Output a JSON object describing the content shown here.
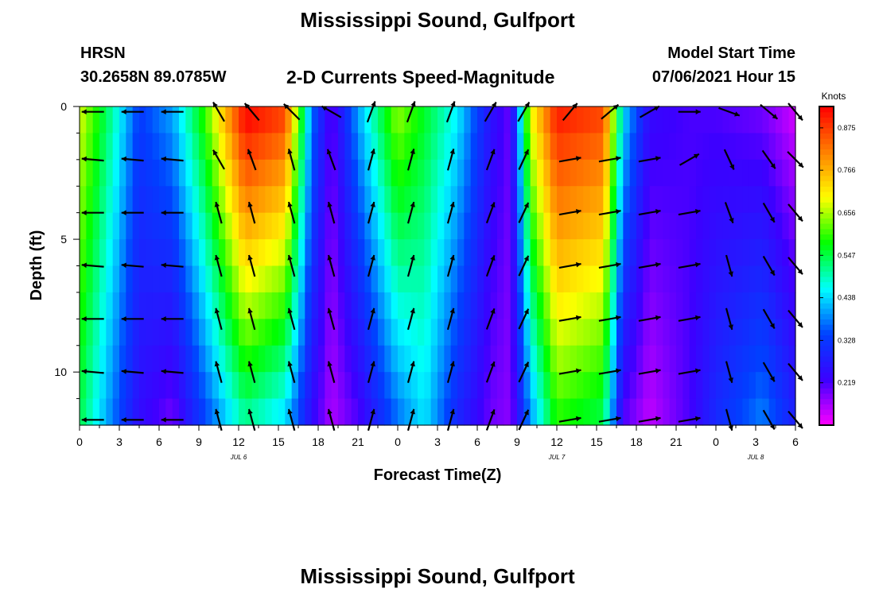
{
  "header": {
    "title": "Mississippi Sound, Gulfport",
    "station": "HRSN",
    "coordinates": "30.2658N  89.0785W",
    "plot_title": "2-D Currents Speed-Magnitude",
    "model_start_label": "Model Start Time",
    "model_start_value": "07/06/2021 Hour 15"
  },
  "footer": {
    "title": "Mississippi Sound, Gulfport"
  },
  "chart_data": {
    "type": "heatmap",
    "title": "2-D Currents Speed-Magnitude",
    "xlabel": "Forecast Time(Z)",
    "ylabel": "Depth (ft)",
    "x_range": [
      0,
      54
    ],
    "y_range": [
      0,
      12
    ],
    "y_inverted": true,
    "x_tick_labels": [
      "0",
      "3",
      "6",
      "9",
      "12",
      "15",
      "18",
      "21",
      "0",
      "3",
      "6",
      "9",
      "12",
      "15",
      "18",
      "21",
      "0",
      "3",
      "6"
    ],
    "y_tick_labels": [
      "0",
      "5",
      "10"
    ],
    "y_tick_values": [
      0,
      5,
      10
    ],
    "date_labels": [
      {
        "text": "JUL 6",
        "hour": 12
      },
      {
        "text": "JUL 7",
        "hour": 36
      },
      {
        "text": "JUL 8",
        "hour": 51
      }
    ],
    "colorbar": {
      "unit_label": "Knots",
      "range": [
        0.11,
        0.93
      ],
      "tick_labels": [
        "0.875",
        "0.766",
        "0.656",
        "0.547",
        "0.438",
        "0.328",
        "0.219"
      ],
      "tick_values": [
        0.875,
        0.766,
        0.656,
        0.547,
        0.438,
        0.328,
        0.219
      ],
      "colors": [
        "#ff00ff",
        "#3c00ff",
        "#0040ff",
        "#00ffff",
        "#00ff00",
        "#ffff00",
        "#ff8000",
        "#ff0000"
      ]
    },
    "profile_depths_ft": [
      0.5,
      1.5,
      2.5,
      3.5,
      4.5,
      5.5,
      6.5,
      7.5,
      8.5,
      9.5,
      10.5,
      11.5
    ],
    "speed_profile": [
      {
        "hour": 0.0,
        "surface": 0.68,
        "bottom": 0.55
      },
      {
        "hour": 2.5,
        "surface": 0.5,
        "bottom": 0.38
      },
      {
        "hour": 4.5,
        "surface": 0.33,
        "bottom": 0.25
      },
      {
        "hour": 7.0,
        "surface": 0.4,
        "bottom": 0.2
      },
      {
        "hour": 9.5,
        "surface": 0.6,
        "bottom": 0.35
      },
      {
        "hour": 12.5,
        "surface": 0.92,
        "bottom": 0.52
      },
      {
        "hour": 15.5,
        "surface": 0.86,
        "bottom": 0.45
      },
      {
        "hour": 17.5,
        "surface": 0.38,
        "bottom": 0.25
      },
      {
        "hour": 19.0,
        "surface": 0.2,
        "bottom": 0.16
      },
      {
        "hour": 21.0,
        "surface": 0.4,
        "bottom": 0.22
      },
      {
        "hour": 24.0,
        "surface": 0.64,
        "bottom": 0.38
      },
      {
        "hour": 26.0,
        "surface": 0.56,
        "bottom": 0.45
      },
      {
        "hour": 28.5,
        "surface": 0.45,
        "bottom": 0.3
      },
      {
        "hour": 31.0,
        "surface": 0.26,
        "bottom": 0.2
      },
      {
        "hour": 32.5,
        "surface": 0.2,
        "bottom": 0.18
      },
      {
        "hour": 34.0,
        "surface": 0.68,
        "bottom": 0.4
      },
      {
        "hour": 36.0,
        "surface": 0.9,
        "bottom": 0.6
      },
      {
        "hour": 39.5,
        "surface": 0.86,
        "bottom": 0.55
      },
      {
        "hour": 41.0,
        "surface": 0.44,
        "bottom": 0.22
      },
      {
        "hour": 43.0,
        "surface": 0.24,
        "bottom": 0.15
      },
      {
        "hour": 46.0,
        "surface": 0.22,
        "bottom": 0.22
      },
      {
        "hour": 48.0,
        "surface": 0.22,
        "bottom": 0.3
      },
      {
        "hour": 51.5,
        "surface": 0.2,
        "bottom": 0.38
      },
      {
        "hour": 54.0,
        "surface": 0.14,
        "bottom": 0.28
      }
    ],
    "vector_hours": [
      1,
      4,
      7,
      10.5,
      13,
      16,
      19,
      22,
      25,
      28,
      31,
      33.5,
      37,
      40,
      43,
      46,
      49,
      52,
      54
    ],
    "vector_depths_ft": [
      0.2,
      2,
      4,
      6,
      8,
      10,
      11.8
    ],
    "vector_directions_deg": [
      [
        270,
        270,
        270,
        330,
        320,
        315,
        300,
        20,
        20,
        20,
        30,
        30,
        40,
        50,
        60,
        90,
        110,
        130,
        140
      ],
      [
        275,
        275,
        275,
        330,
        340,
        345,
        340,
        15,
        15,
        15,
        20,
        25,
        80,
        80,
        80,
        60,
        155,
        145,
        135
      ],
      [
        270,
        270,
        270,
        345,
        345,
        345,
        345,
        15,
        15,
        15,
        20,
        25,
        80,
        80,
        80,
        80,
        160,
        150,
        140
      ],
      [
        275,
        275,
        275,
        345,
        345,
        345,
        345,
        15,
        15,
        15,
        20,
        25,
        80,
        80,
        80,
        80,
        165,
        150,
        140
      ],
      [
        270,
        270,
        270,
        345,
        345,
        345,
        345,
        15,
        15,
        15,
        20,
        25,
        80,
        80,
        80,
        80,
        165,
        150,
        140
      ],
      [
        275,
        275,
        275,
        345,
        345,
        345,
        345,
        15,
        15,
        15,
        20,
        25,
        80,
        80,
        80,
        80,
        165,
        150,
        140
      ],
      [
        270,
        270,
        270,
        345,
        345,
        345,
        345,
        15,
        15,
        15,
        20,
        25,
        80,
        80,
        80,
        80,
        165,
        150,
        140
      ]
    ]
  }
}
